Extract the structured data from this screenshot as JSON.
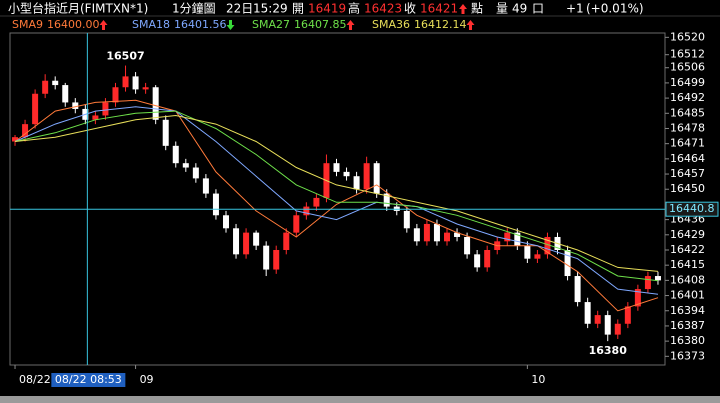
{
  "header": {
    "symbol": "小型台指近月(FIMTXN*1)",
    "interval": "1分鐘圖",
    "date": "22日",
    "time": "15:29",
    "open_label": "開",
    "open": 16419,
    "high_label": "高",
    "high": 16423,
    "close_label": "收",
    "close": 16421,
    "point_label": "點",
    "volume_label": "量",
    "volume": 49,
    "volume_unit": "口",
    "change": "+1",
    "change_pct": "(+0.01%)"
  },
  "chart_data": {
    "type": "candlestick",
    "up_color": "#ff2a2a",
    "down_color": "#ffffff",
    "open": [
      16472,
      16474,
      16480,
      16494,
      16500,
      16498,
      16490,
      16487,
      16482,
      16484,
      16490,
      16497,
      16502,
      16496,
      16497,
      16482,
      16470,
      16462,
      16460,
      16455,
      16448,
      16438,
      16432,
      16420,
      16430,
      16424,
      16413,
      16422,
      16430,
      16438,
      16442,
      16446,
      16462,
      16458,
      16456,
      16450,
      16462,
      16448,
      16442,
      16440,
      16432,
      16426,
      16434,
      16426,
      16430,
      16428,
      16420,
      16414,
      16422,
      16426,
      16430,
      16424,
      16418,
      16420,
      16428,
      16422,
      16410,
      16398,
      16388,
      16392,
      16383,
      16388,
      16396,
      16404,
      16410
    ],
    "high": [
      16475,
      16482,
      16496,
      16503,
      16502,
      16499,
      16492,
      16489,
      16486,
      16492,
      16499,
      16507,
      16504,
      16499,
      16498,
      16484,
      16472,
      16464,
      16462,
      16457,
      16450,
      16440,
      16434,
      16432,
      16431,
      16426,
      16424,
      16432,
      16440,
      16444,
      16448,
      16466,
      16464,
      16460,
      16458,
      16465,
      16463,
      16450,
      16444,
      16442,
      16434,
      16436,
      16436,
      16432,
      16432,
      16430,
      16422,
      16424,
      16428,
      16432,
      16432,
      16426,
      16422,
      16430,
      16430,
      16424,
      16412,
      16400,
      16394,
      16394,
      16390,
      16398,
      16406,
      16412,
      16412
    ],
    "low": [
      16470,
      16472,
      16478,
      16492,
      16496,
      16488,
      16485,
      16480,
      16480,
      16482,
      16488,
      16495,
      16494,
      16494,
      16480,
      16468,
      16460,
      16458,
      16453,
      16446,
      16436,
      16430,
      16418,
      16418,
      16422,
      16410,
      16411,
      16420,
      16428,
      16436,
      16440,
      16444,
      16456,
      16454,
      16448,
      16448,
      16446,
      16440,
      16438,
      16430,
      16424,
      16424,
      16424,
      16424,
      16426,
      16418,
      16412,
      16412,
      16420,
      16424,
      16422,
      16416,
      16416,
      16418,
      16420,
      16408,
      16396,
      16386,
      16386,
      16380,
      16381,
      16386,
      16394,
      16402,
      16406
    ],
    "close": [
      16474,
      16480,
      16494,
      16500,
      16498,
      16490,
      16487,
      16482,
      16484,
      16490,
      16497,
      16502,
      16496,
      16497,
      16482,
      16470,
      16462,
      16460,
      16455,
      16448,
      16438,
      16432,
      16420,
      16430,
      16424,
      16413,
      16422,
      16430,
      16438,
      16442,
      16446,
      16462,
      16458,
      16456,
      16450,
      16462,
      16448,
      16442,
      16440,
      16432,
      16426,
      16434,
      16426,
      16430,
      16428,
      16420,
      16414,
      16422,
      16426,
      16430,
      16424,
      16418,
      16420,
      16428,
      16422,
      16410,
      16398,
      16388,
      16392,
      16383,
      16388,
      16396,
      16404,
      16410,
      16408
    ],
    "series": [
      {
        "name": "SMA9",
        "color": "#ff7a3a",
        "trend": "up",
        "value_label": "16400.00",
        "x": [
          0,
          4,
          8,
          12,
          16,
          20,
          24,
          28,
          32,
          36,
          40,
          44,
          48,
          52,
          56,
          60,
          64
        ],
        "values": [
          16472,
          16486,
          16490,
          16491,
          16486,
          16458,
          16440,
          16428,
          16443,
          16452,
          16438,
          16430,
          16424,
          16424,
          16412,
          16394,
          16400
        ]
      },
      {
        "name": "SMA18",
        "color": "#7fa8ff",
        "trend": "down",
        "value_label": "16401.56",
        "x": [
          0,
          4,
          8,
          12,
          16,
          20,
          24,
          28,
          32,
          36,
          40,
          44,
          48,
          52,
          56,
          60,
          64
        ],
        "values": [
          16472,
          16480,
          16486,
          16488,
          16486,
          16472,
          16456,
          16440,
          16436,
          16444,
          16442,
          16434,
          16428,
          16424,
          16418,
          16404,
          16401.56
        ]
      },
      {
        "name": "SMA27",
        "color": "#6ee04a",
        "trend": "up",
        "value_label": "16407.85",
        "x": [
          0,
          4,
          8,
          12,
          16,
          20,
          24,
          28,
          32,
          36,
          40,
          44,
          48,
          52,
          56,
          60,
          64
        ],
        "values": [
          16472,
          16476,
          16482,
          16485,
          16486,
          16478,
          16466,
          16452,
          16444,
          16444,
          16442,
          16438,
          16432,
          16426,
          16420,
          16410,
          16407.85
        ]
      },
      {
        "name": "SMA36",
        "color": "#e8df5a",
        "trend": "up",
        "value_label": "16412.14",
        "x": [
          0,
          4,
          8,
          12,
          16,
          20,
          24,
          28,
          32,
          36,
          40,
          44,
          48,
          52,
          56,
          60,
          64
        ],
        "values": [
          16472,
          16474,
          16478,
          16482,
          16484,
          16480,
          16472,
          16460,
          16452,
          16448,
          16444,
          16440,
          16434,
          16428,
          16422,
          16414,
          16412.14
        ]
      }
    ],
    "ylim": [
      16369,
      16522
    ],
    "yticks": [
      16520,
      16512,
      16506,
      16499,
      16492,
      16485,
      16478,
      16471,
      16464,
      16457,
      16450,
      16436,
      16429,
      16422,
      16415,
      16408,
      16401,
      16394,
      16387,
      16380,
      16373
    ],
    "xlim": [
      -0.5,
      64.7
    ],
    "xticks": [
      {
        "value": 0,
        "label": "08/22"
      },
      {
        "value": 12,
        "label": "09"
      },
      {
        "value": 51,
        "label": "10"
      }
    ],
    "last_price": 16440.8,
    "crosshair": {
      "x": 7.2,
      "label": "08/22 08:53"
    },
    "annotations": [
      {
        "x": 11,
        "value": 16507
      },
      {
        "x": 59,
        "value": 16380
      }
    ]
  }
}
